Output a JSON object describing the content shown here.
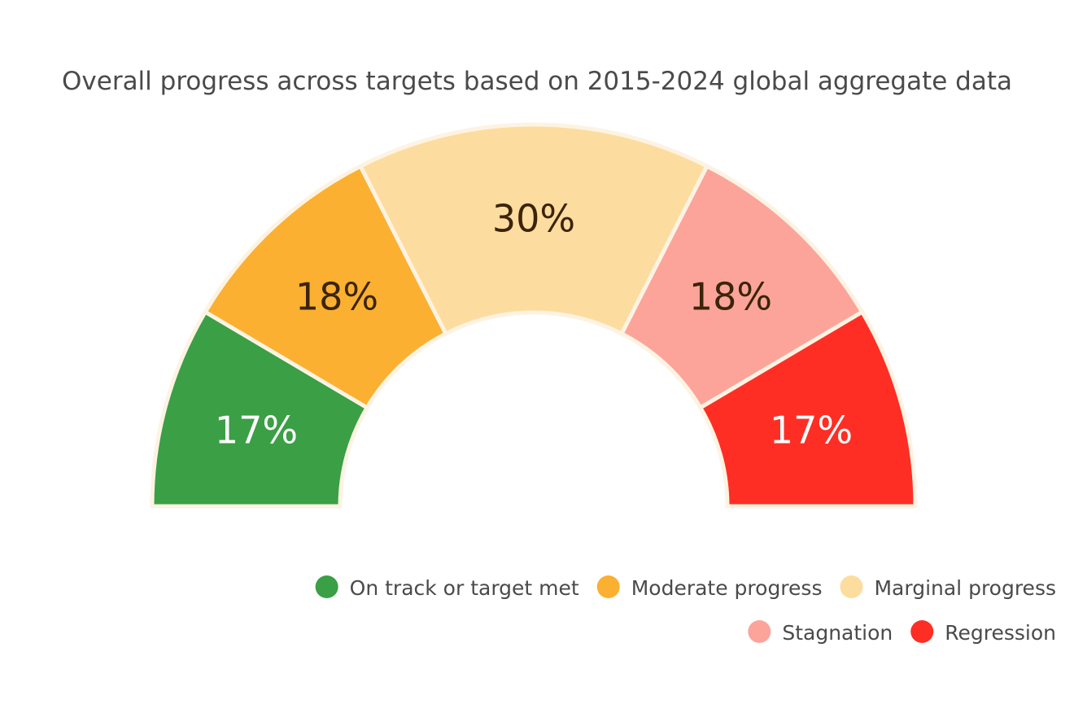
{
  "chart_data": {
    "type": "pie",
    "variant": "half-donut",
    "title": "Overall progress across targets based on 2015-2024 global aggregate data",
    "categories": [
      "On track or target met",
      "Moderate progress",
      "Marginal progress",
      "Stagnation",
      "Regression"
    ],
    "values": [
      17,
      18,
      30,
      18,
      17
    ],
    "value_labels": [
      "17%",
      "18%",
      "30%",
      "18%",
      "17%"
    ],
    "colors": [
      "#3a9f45",
      "#fbb031",
      "#fddc9f",
      "#fca49a",
      "#fe2e25"
    ],
    "label_colors": [
      "#ffffff",
      "#3b2409",
      "#3b2409",
      "#3b2409",
      "#ffffff"
    ],
    "legend": {
      "position": "bottom-right",
      "entries": [
        {
          "name": "On track or target met",
          "color": "#3a9f45"
        },
        {
          "name": "Moderate progress",
          "color": "#fbb031"
        },
        {
          "name": "Marginal progress",
          "color": "#fddc9f"
        },
        {
          "name": "Stagnation",
          "color": "#fca49a"
        },
        {
          "name": "Regression",
          "color": "#fe2e25"
        }
      ]
    }
  }
}
